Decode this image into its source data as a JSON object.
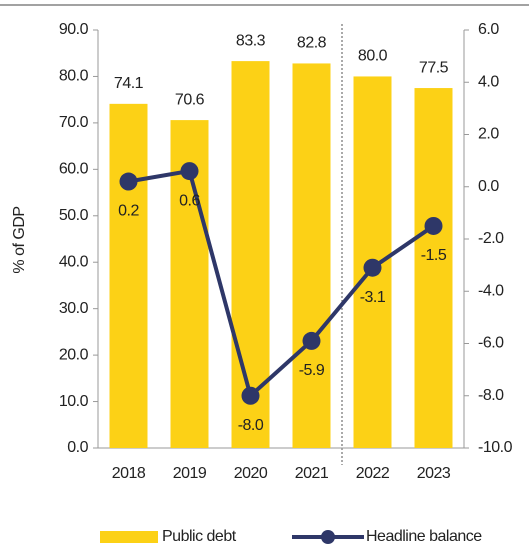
{
  "chart_data": {
    "type": "bar-line",
    "categories": [
      "2018",
      "2019",
      "2020",
      "2021",
      "2022",
      "2023"
    ],
    "series": [
      {
        "name": "Public debt",
        "type": "bar",
        "color": "#fcd116",
        "values": [
          74.1,
          70.6,
          83.3,
          82.8,
          80.0,
          77.5
        ],
        "value_labels": [
          "74.1",
          "70.6",
          "83.3",
          "82.8",
          "80.0",
          "77.5"
        ]
      },
      {
        "name": "Headline balance",
        "type": "line",
        "axis": "y2",
        "color": "#2e3768",
        "values": [
          0.2,
          0.6,
          -8.0,
          -5.9,
          -3.1,
          -1.5
        ],
        "value_labels": [
          "0.2",
          "0.6",
          "-8.0",
          "-5.9",
          "-3.1",
          "-1.5"
        ]
      }
    ],
    "ylabel": "% of GDP",
    "ylim": [
      0,
      90
    ],
    "yticks": [
      {
        "value": 0,
        "label": "0.0"
      },
      {
        "value": 10,
        "label": "10.0"
      },
      {
        "value": 20,
        "label": "20.0"
      },
      {
        "value": 30,
        "label": "30.0"
      },
      {
        "value": 40,
        "label": "40.0"
      },
      {
        "value": 50,
        "label": "50.0"
      },
      {
        "value": 60,
        "label": "60.0"
      },
      {
        "value": 70,
        "label": "70.0"
      },
      {
        "value": 80,
        "label": "80.0"
      },
      {
        "value": 90,
        "label": "90.0"
      }
    ],
    "y2lim": [
      -10,
      6
    ],
    "y2ticks": [
      {
        "value": -10,
        "label": "-10.0"
      },
      {
        "value": -8,
        "label": "-8.0"
      },
      {
        "value": -6,
        "label": "-6.0"
      },
      {
        "value": -4,
        "label": "-4.0"
      },
      {
        "value": -2,
        "label": "-2.0"
      },
      {
        "value": 0,
        "label": "0.0"
      },
      {
        "value": 2,
        "label": "2.0"
      },
      {
        "value": 4,
        "label": "4.0"
      },
      {
        "value": 6,
        "label": "6.0"
      }
    ]
  }
}
